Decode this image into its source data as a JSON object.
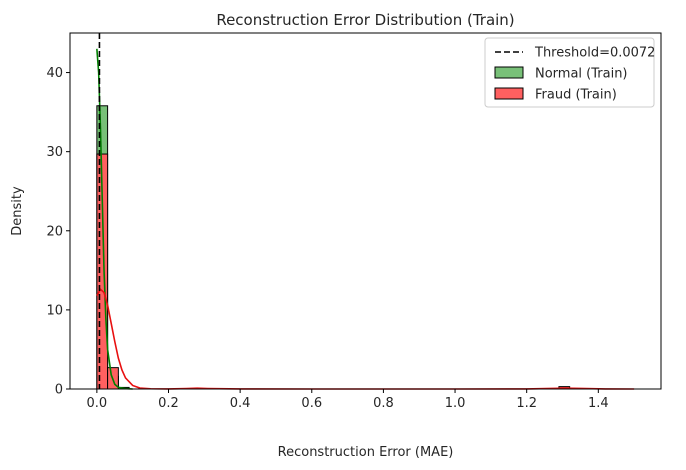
{
  "chart_data": {
    "type": "histogram",
    "title": "Reconstruction Error Distribution (Train)",
    "xlabel": "Reconstruction Error (MAE)",
    "ylabel": "Density",
    "xlim": [
      -0.075,
      1.575
    ],
    "ylim": [
      0,
      45
    ],
    "xticks": [
      0.0,
      0.2,
      0.4,
      0.6,
      0.8,
      1.0,
      1.2,
      1.4
    ],
    "xtick_labels": [
      "0.0",
      "0.2",
      "0.4",
      "0.6",
      "0.8",
      "1.0",
      "1.2",
      "1.4"
    ],
    "yticks": [
      0,
      10,
      20,
      30,
      40
    ],
    "ytick_labels": [
      "0",
      "10",
      "20",
      "30",
      "40"
    ],
    "grid": false,
    "legend_position": "top-right",
    "threshold": {
      "label": "Threshold=0.0072",
      "value": 0.0072,
      "color": "#000000",
      "style": "dashed"
    },
    "series": [
      {
        "name": "Normal (Train)",
        "fill": "#78c078",
        "line": "#008000",
        "bins": [
          {
            "x0": 0.0,
            "x1": 0.03,
            "height": 35.8
          },
          {
            "x0": 0.03,
            "x1": 0.06,
            "height": 1.6
          },
          {
            "x0": 0.06,
            "x1": 0.09,
            "height": 0.2
          }
        ],
        "kde": [
          [
            0.0,
            43
          ],
          [
            0.005,
            40
          ],
          [
            0.01,
            33
          ],
          [
            0.015,
            24
          ],
          [
            0.02,
            15
          ],
          [
            0.025,
            9
          ],
          [
            0.03,
            5
          ],
          [
            0.04,
            1.8
          ],
          [
            0.05,
            0.6
          ],
          [
            0.06,
            0.2
          ],
          [
            0.08,
            0.05
          ],
          [
            0.1,
            0
          ]
        ]
      },
      {
        "name": "Fraud (Train)",
        "fill": "#ff6060",
        "line": "#e81010",
        "bins": [
          {
            "x0": 0.0,
            "x1": 0.03,
            "height": 29.7
          },
          {
            "x0": 0.03,
            "x1": 0.06,
            "height": 2.7
          },
          {
            "x0": 1.29,
            "x1": 1.32,
            "height": 0.3
          }
        ],
        "kde": [
          [
            0.0,
            11.8
          ],
          [
            0.01,
            12.6
          ],
          [
            0.02,
            12.2
          ],
          [
            0.03,
            10.6
          ],
          [
            0.04,
            8.3
          ],
          [
            0.05,
            6.0
          ],
          [
            0.06,
            3.9
          ],
          [
            0.07,
            2.4
          ],
          [
            0.08,
            1.4
          ],
          [
            0.1,
            0.45
          ],
          [
            0.12,
            0.12
          ],
          [
            0.15,
            0.03
          ],
          [
            0.2,
            0.01
          ],
          [
            0.25,
            0.06
          ],
          [
            0.28,
            0.1
          ],
          [
            0.31,
            0.06
          ],
          [
            0.4,
            0.01
          ],
          [
            0.6,
            0
          ],
          [
            1.0,
            0
          ],
          [
            1.2,
            0.01
          ],
          [
            1.27,
            0.07
          ],
          [
            1.31,
            0.11
          ],
          [
            1.35,
            0.07
          ],
          [
            1.42,
            0.01
          ],
          [
            1.5,
            0
          ]
        ]
      }
    ]
  }
}
